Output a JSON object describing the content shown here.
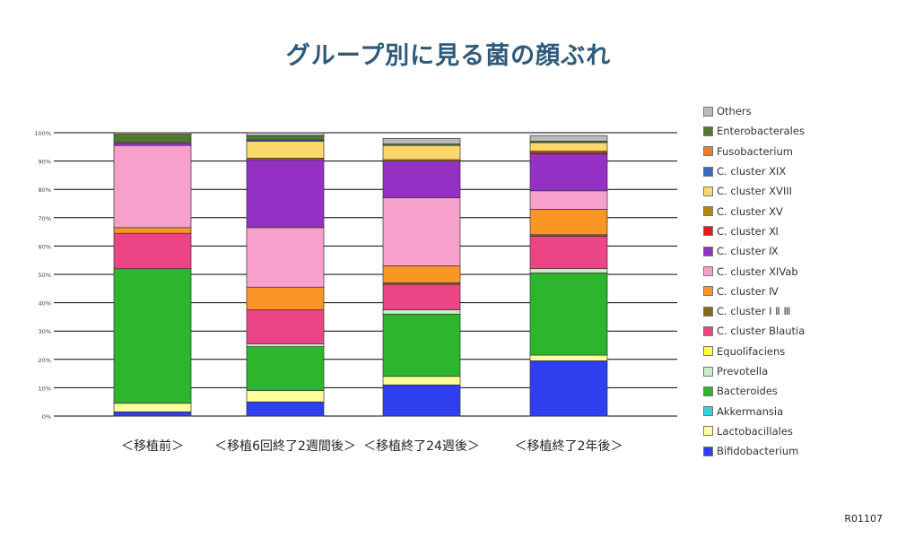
{
  "header": {
    "title": "グループ別に見る菌の顔ぶれ"
  },
  "footer": {
    "code": "R01107"
  },
  "chart_data": {
    "type": "bar",
    "stacked": true,
    "title": "グループ別に見る菌の顔ぶれ",
    "xlabel": "",
    "ylabel": "",
    "ylim": [
      0,
      100
    ],
    "yticks": [
      "0%",
      "10%",
      "20%",
      "30%",
      "40%",
      "50%",
      "60%",
      "70%",
      "80%",
      "90%",
      "100%"
    ],
    "categories": [
      "＜移植前＞",
      "＜移植6回終了2週間後＞",
      "＜移植終了24週後＞",
      "＜移植終了2年後＞"
    ],
    "legend_position": "right",
    "series": [
      {
        "name": "Bifidobacterium",
        "color": "#2e3ff0",
        "values": [
          1.5,
          5,
          11,
          19.5
        ]
      },
      {
        "name": "Lactobacillales",
        "color": "#ffff99",
        "values": [
          3,
          4,
          3,
          2
        ]
      },
      {
        "name": "Akkermansia",
        "color": "#33d1e0",
        "values": [
          0,
          0,
          0,
          0
        ]
      },
      {
        "name": "Bacteroides",
        "color": "#2db52d",
        "values": [
          47.5,
          15.5,
          22,
          29
        ]
      },
      {
        "name": "Prevotella",
        "color": "#c8f0c8",
        "values": [
          0,
          1,
          1.5,
          1.5
        ]
      },
      {
        "name": "Equolifaciens",
        "color": "#ffff33",
        "values": [
          0,
          0,
          0,
          0
        ]
      },
      {
        "name": "C. cluster Blautia",
        "color": "#ec4585",
        "values": [
          12.5,
          12,
          9,
          11.5
        ]
      },
      {
        "name": "C. cluster Ⅰ Ⅱ Ⅲ",
        "color": "#8b6914",
        "values": [
          0,
          0,
          0.5,
          0.5
        ]
      },
      {
        "name": "C. cluster Ⅳ",
        "color": "#fa9625",
        "values": [
          2,
          8,
          6,
          9
        ]
      },
      {
        "name": "C. cluster XIVab",
        "color": "#f7a0cc",
        "values": [
          29,
          21,
          24,
          6.5
        ]
      },
      {
        "name": "C. cluster Ⅸ",
        "color": "#9530c4",
        "values": [
          1,
          24,
          13,
          13
        ]
      },
      {
        "name": "C. cluster Ⅺ",
        "color": "#e81818",
        "values": [
          0,
          0,
          0,
          0.5
        ]
      },
      {
        "name": "C. cluster XV",
        "color": "#b8860b",
        "values": [
          0,
          0.5,
          0.5,
          0.5
        ]
      },
      {
        "name": "C. cluster XVIII",
        "color": "#fcd76a",
        "values": [
          0,
          6,
          5,
          3
        ]
      },
      {
        "name": "C. cluster XIX",
        "color": "#3a6bc4",
        "values": [
          0,
          0.5,
          0,
          0
        ]
      },
      {
        "name": "Fusobacterium",
        "color": "#f07b28",
        "values": [
          0,
          0,
          0,
          0
        ]
      },
      {
        "name": "Enterobacterales",
        "color": "#4f7a2e",
        "values": [
          3,
          1.5,
          0.5,
          0.5
        ]
      },
      {
        "name": "Others",
        "color": "#bbbbbb",
        "values": [
          0.5,
          1,
          2,
          2
        ]
      }
    ]
  }
}
